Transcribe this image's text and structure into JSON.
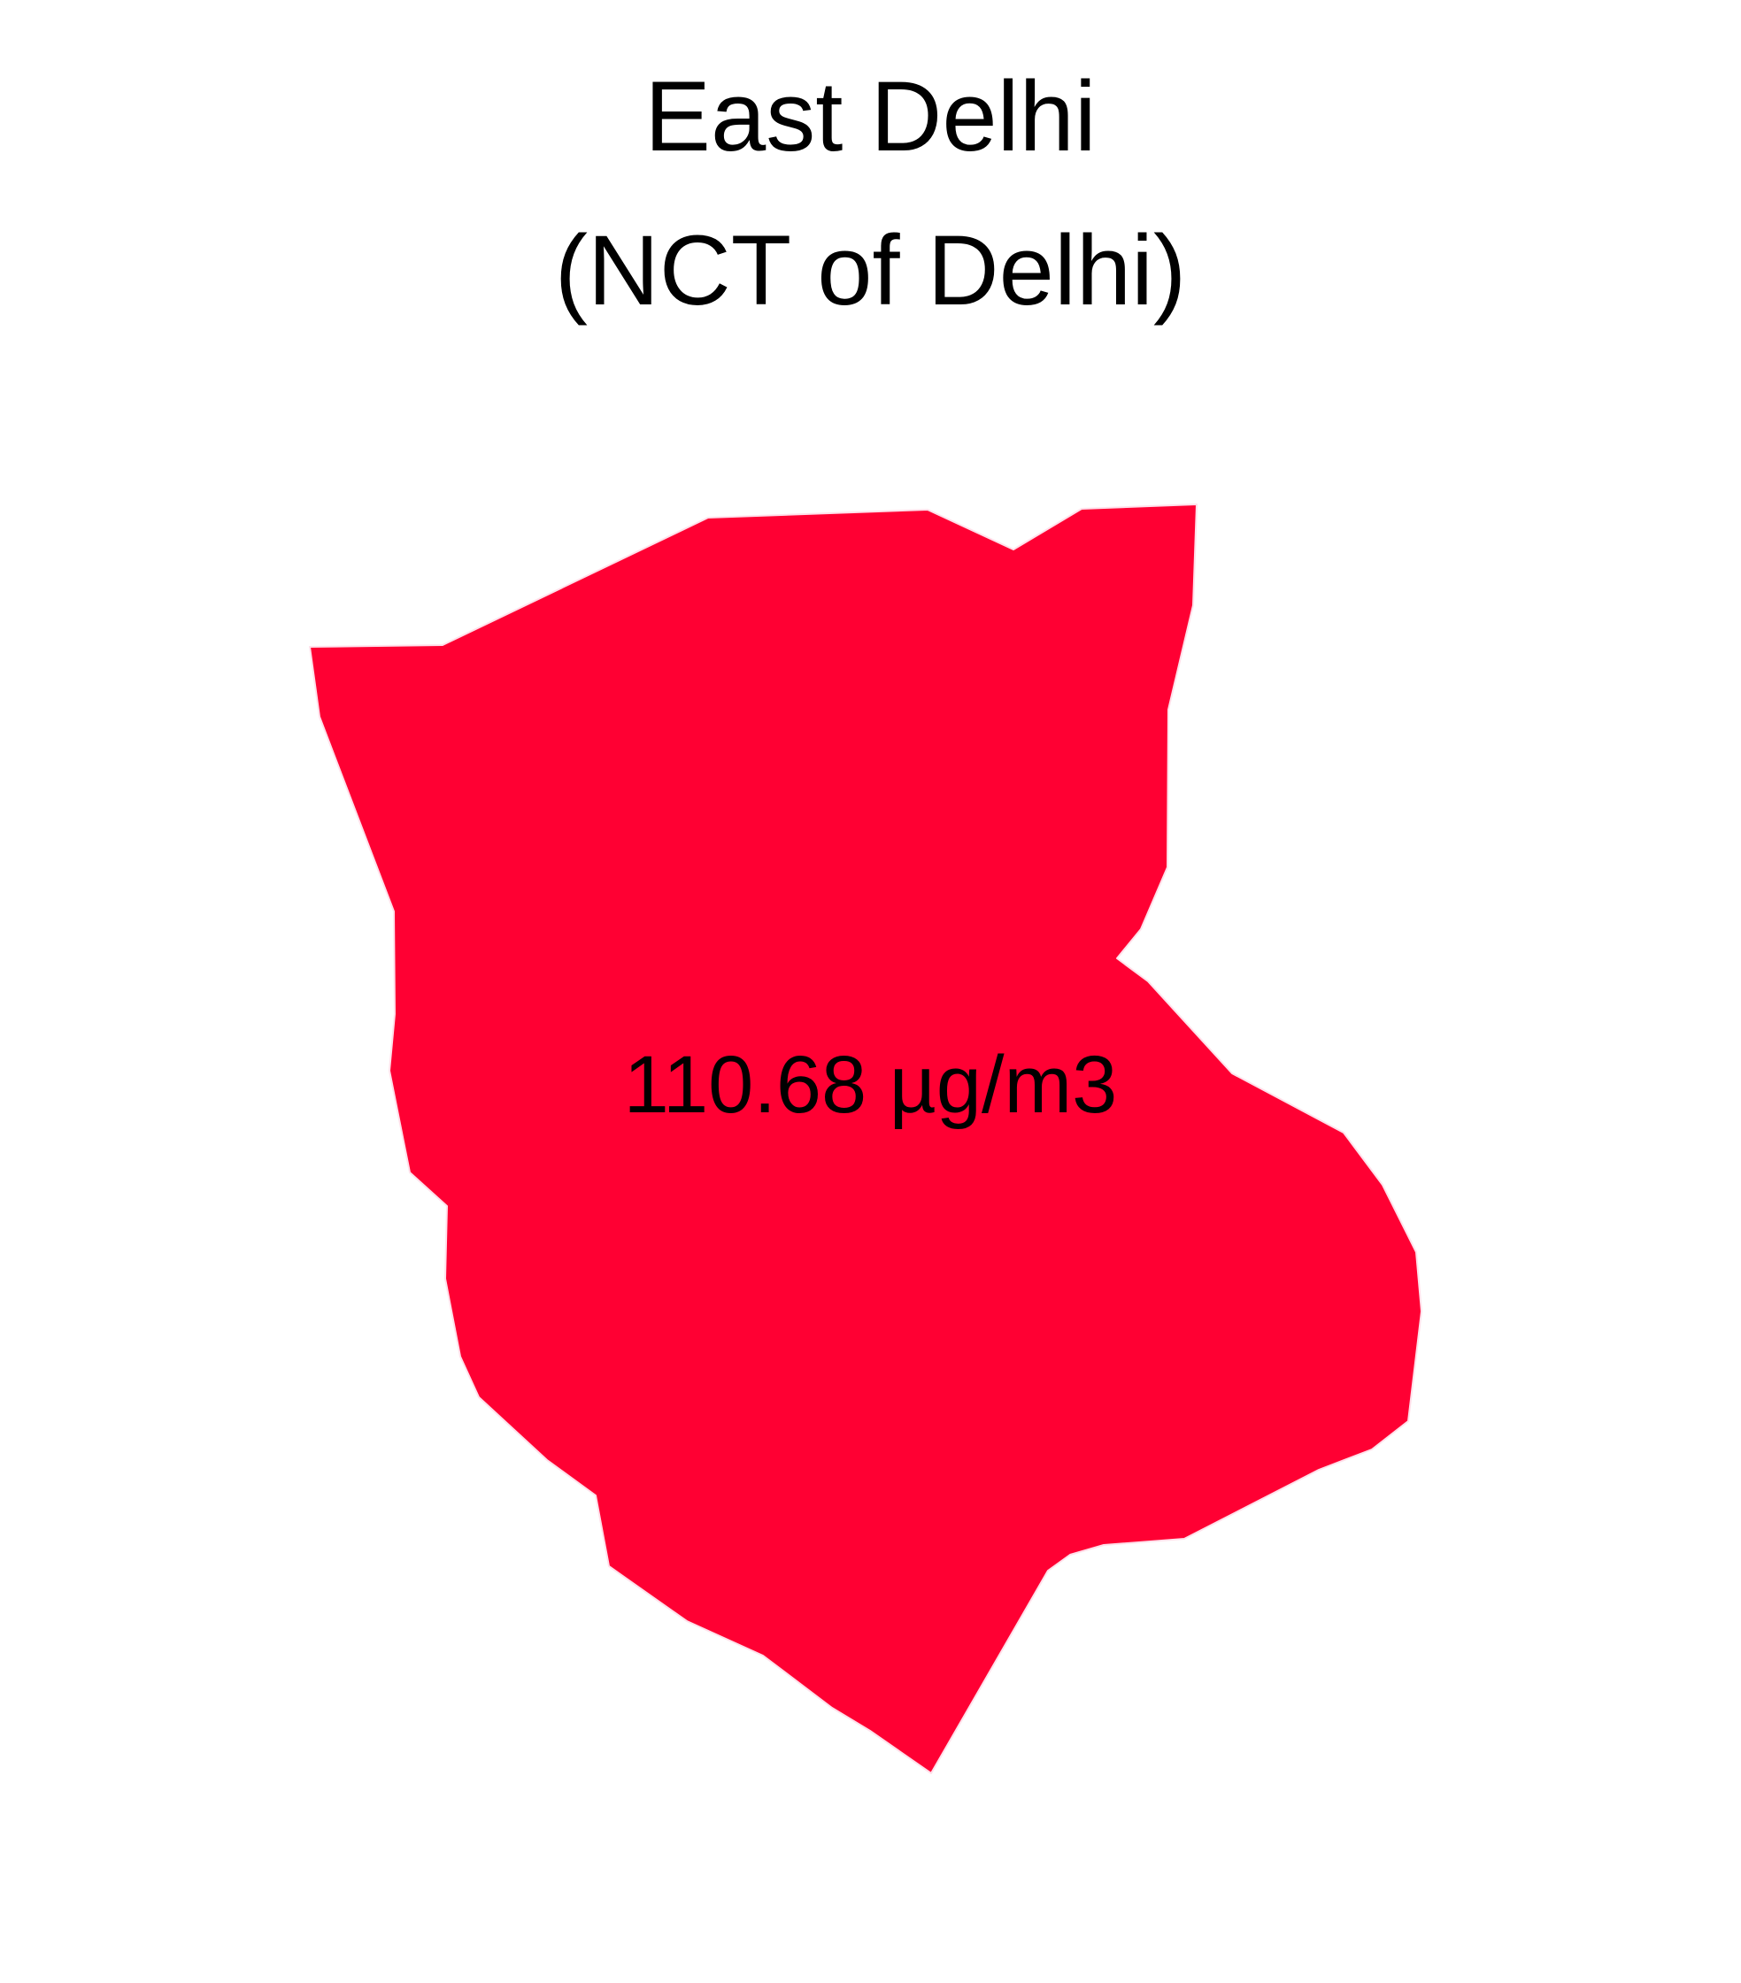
{
  "map": {
    "title": "East Delhi",
    "subtitle": "(NCT of Delhi)",
    "value_label": "110.68 µg/m3",
    "fill_color": "#ff0033",
    "border_color": "#ffe0ea"
  }
}
